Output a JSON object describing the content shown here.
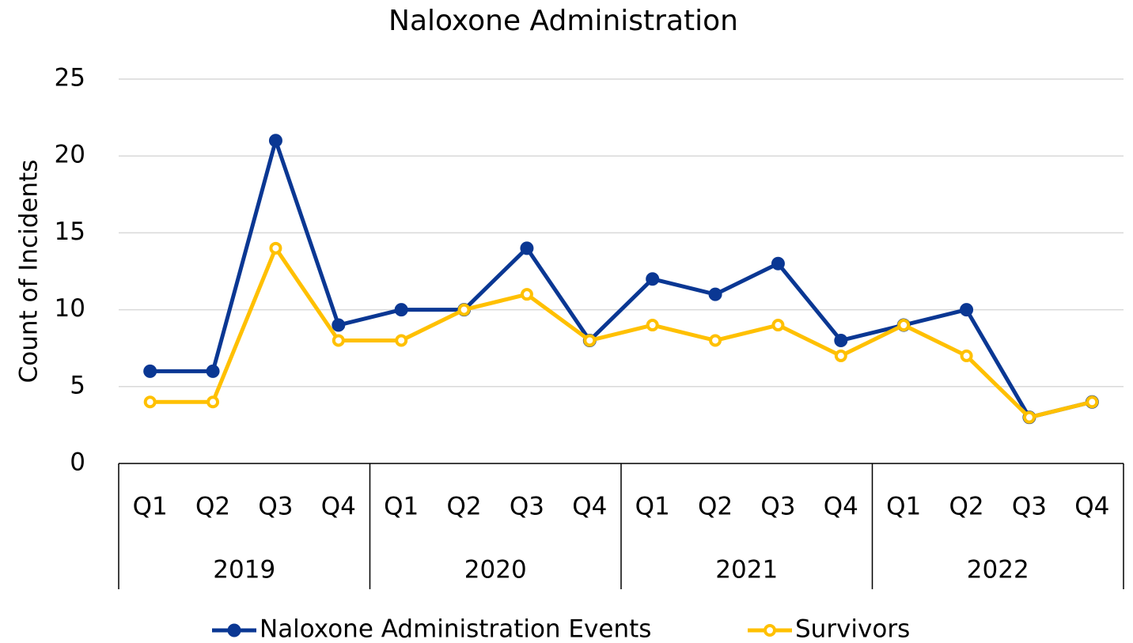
{
  "chart_data": {
    "type": "line",
    "title": "Naloxone Administration",
    "y_label": "Count of Incidents",
    "categories": [
      "Q1",
      "Q2",
      "Q3",
      "Q4",
      "Q1",
      "Q2",
      "Q3",
      "Q4",
      "Q1",
      "Q2",
      "Q3",
      "Q4",
      "Q1",
      "Q2",
      "Q3",
      "Q4"
    ],
    "category_groups": [
      "2019",
      "2020",
      "2021",
      "2022"
    ],
    "series": [
      {
        "name": "Naloxone Administration Events",
        "color": "#0a3793",
        "values": [
          6,
          6,
          21,
          9,
          10,
          10,
          14,
          8,
          12,
          11,
          13,
          8,
          9,
          10,
          3,
          4
        ]
      },
      {
        "name": "Survivors",
        "color": "#ffc000",
        "values": [
          4,
          4,
          14,
          8,
          8,
          10,
          11,
          8,
          9,
          8,
          9,
          7,
          9,
          7,
          3,
          4
        ]
      }
    ],
    "ylim": [
      0,
      25
    ],
    "yticks": [
      0,
      5,
      10,
      15,
      20,
      25
    ],
    "grid": true
  }
}
